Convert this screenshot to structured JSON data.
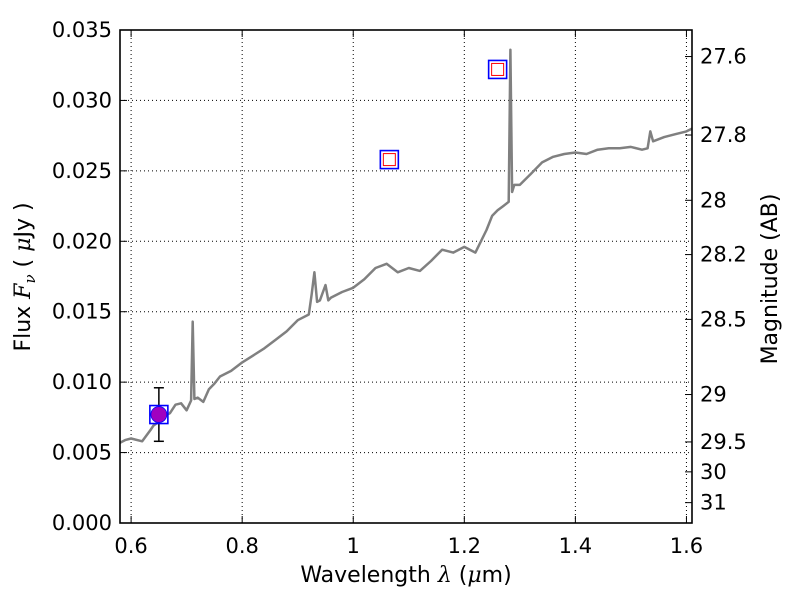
{
  "chart_data": {
    "type": "line",
    "xlabel_prefix": "Wavelength  ",
    "xlabel_symbol": "λ",
    "xlabel_unit_open": " (",
    "xlabel_unit_mu": "μ",
    "xlabel_unit_close": "m)",
    "ylabel_prefix": "Flux  ",
    "ylabel_symbol_F": "F",
    "ylabel_symbol_sub": "ν",
    "ylabel_unit_open": "  ( ",
    "ylabel_unit_mu": "μ",
    "ylabel_unit_close": "Jy )",
    "y2label": "Magnitude (AB)",
    "xlim": [
      0.58,
      1.61
    ],
    "ylim": [
      0.0,
      0.035
    ],
    "grid": true,
    "x_ticks": [
      0.6,
      0.8,
      1.0,
      1.2,
      1.4,
      1.6
    ],
    "x_tick_labels": [
      "0.6",
      "0.8",
      "1",
      "1.2",
      "1.4",
      "1.6"
    ],
    "y_ticks": [
      0.0,
      0.005,
      0.01,
      0.015,
      0.02,
      0.025,
      0.03,
      0.035
    ],
    "y_tick_labels": [
      "0.000",
      "0.005",
      "0.010",
      "0.015",
      "0.020",
      "0.025",
      "0.030",
      "0.035"
    ],
    "y2_ticks": [
      27.6,
      27.8,
      28.0,
      28.2,
      28.5,
      29.0,
      29.5,
      30.0,
      31.0
    ],
    "y2_tick_labels": [
      "27.6",
      "27.8",
      "28",
      "28.2",
      "28.5",
      "29",
      "29.5",
      "30",
      "31"
    ],
    "series": [
      {
        "color": "#808080",
        "x": [
          0.58,
          0.59,
          0.6,
          0.62,
          0.635,
          0.64,
          0.65,
          0.66,
          0.67,
          0.68,
          0.69,
          0.7,
          0.708,
          0.711,
          0.714,
          0.72,
          0.73,
          0.74,
          0.75,
          0.76,
          0.78,
          0.8,
          0.82,
          0.84,
          0.86,
          0.88,
          0.9,
          0.92,
          0.925,
          0.93,
          0.935,
          0.94,
          0.95,
          0.955,
          0.96,
          0.98,
          1.0,
          1.02,
          1.04,
          1.06,
          1.08,
          1.1,
          1.12,
          1.14,
          1.16,
          1.18,
          1.2,
          1.22,
          1.24,
          1.25,
          1.26,
          1.27,
          1.28,
          1.283,
          1.286,
          1.29,
          1.3,
          1.32,
          1.34,
          1.36,
          1.38,
          1.4,
          1.42,
          1.44,
          1.46,
          1.48,
          1.5,
          1.52,
          1.53,
          1.535,
          1.54,
          1.56,
          1.58,
          1.6,
          1.61
        ],
        "y": [
          0.0057,
          0.0059,
          0.006,
          0.0058,
          0.0066,
          0.0069,
          0.0072,
          0.0076,
          0.0078,
          0.0084,
          0.0085,
          0.008,
          0.0087,
          0.0143,
          0.0088,
          0.0089,
          0.0086,
          0.0095,
          0.0099,
          0.0104,
          0.0108,
          0.0114,
          0.0119,
          0.0124,
          0.013,
          0.0136,
          0.0144,
          0.0148,
          0.0162,
          0.0178,
          0.0157,
          0.0158,
          0.0169,
          0.0158,
          0.016,
          0.0164,
          0.0167,
          0.0173,
          0.0181,
          0.0184,
          0.0178,
          0.0181,
          0.0179,
          0.0186,
          0.0194,
          0.0192,
          0.0196,
          0.0192,
          0.0208,
          0.0218,
          0.0222,
          0.0225,
          0.0228,
          0.0336,
          0.0235,
          0.024,
          0.024,
          0.0248,
          0.0256,
          0.026,
          0.0262,
          0.0263,
          0.0262,
          0.0265,
          0.0266,
          0.0266,
          0.0267,
          0.0265,
          0.0266,
          0.0278,
          0.0271,
          0.0274,
          0.0276,
          0.0278,
          0.028
        ]
      }
    ],
    "photometry": [
      {
        "x": 0.65,
        "y": 0.0077,
        "filled": true,
        "fill_color": "#a000c0",
        "edge_color": "#0000ff",
        "yerr": 0.0019
      },
      {
        "x": 1.065,
        "y": 0.0258,
        "filled": false,
        "edge_color": "#ff0000",
        "box_color": "#0000ff"
      },
      {
        "x": 1.26,
        "y": 0.0322,
        "filled": false,
        "edge_color": "#ff0000",
        "box_color": "#0000ff"
      }
    ]
  }
}
